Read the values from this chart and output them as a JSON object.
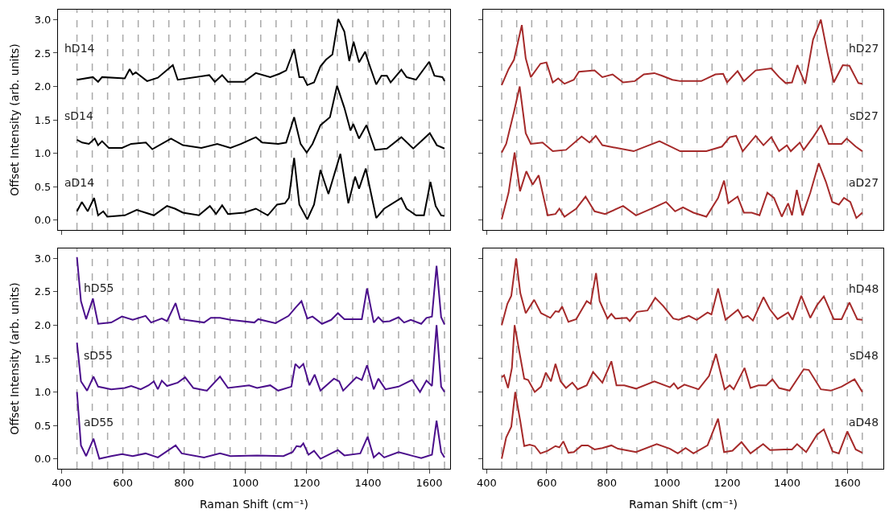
{
  "chart_data": [
    {
      "type": "line",
      "ylabel": "Offset Intensity (arb. units)",
      "xlim": [
        388,
        1668
      ],
      "ylim": [
        -0.15,
        3.15
      ],
      "xticks": [
        {
          "value": 400,
          "label": null
        },
        {
          "value": 600,
          "label": null
        },
        {
          "value": 800,
          "label": null
        },
        {
          "value": 1000,
          "label": null
        },
        {
          "value": 1200,
          "label": null
        },
        {
          "value": 1400,
          "label": null
        },
        {
          "value": 1600,
          "label": null
        }
      ],
      "yticks": [
        {
          "value": 0,
          "label": "0.0"
        },
        {
          "value": 0.5,
          "label": "0.5"
        },
        {
          "value": 1,
          "label": "1.0"
        },
        {
          "value": 1.5,
          "label": "1.5"
        },
        {
          "value": 2,
          "label": "2.0"
        },
        {
          "value": 2.5,
          "label": "2.5"
        },
        {
          "value": 3,
          "label": "3.0"
        }
      ],
      "tick_labels": "y",
      "line_style": "solid",
      "series": [
        {
          "name": "hD14",
          "color": "#000000",
          "x": [
            450,
            502,
            519,
            532,
            606,
            622,
            632,
            642,
            679,
            714,
            763,
            779,
            882,
            900,
            924,
            943,
            995,
            1034,
            1081,
            1111,
            1133,
            1159,
            1176,
            1189,
            1202,
            1224,
            1245,
            1263,
            1284,
            1303,
            1323,
            1339,
            1353,
            1371,
            1391,
            1405,
            1427,
            1444,
            1462,
            1474,
            1509,
            1526,
            1557,
            1600,
            1617,
            1643,
            1650
          ],
          "values": [
            2.1,
            2.14,
            2.07,
            2.14,
            2.12,
            2.26,
            2.18,
            2.21,
            2.08,
            2.13,
            2.32,
            2.1,
            2.17,
            2.07,
            2.17,
            2.07,
            2.07,
            2.2,
            2.14,
            2.19,
            2.24,
            2.56,
            2.14,
            2.14,
            2.02,
            2.06,
            2.3,
            2.4,
            2.48,
            3.01,
            2.82,
            2.38,
            2.67,
            2.36,
            2.52,
            2.32,
            2.03,
            2.16,
            2.16,
            2.06,
            2.25,
            2.14,
            2.1,
            2.37,
            2.16,
            2.14,
            2.08
          ]
        },
        {
          "name": "sD14",
          "color": "#000000",
          "x": [
            450,
            467,
            489,
            508,
            519,
            532,
            554,
            597,
            627,
            675,
            696,
            757,
            796,
            856,
            908,
            951,
            986,
            1034,
            1055,
            1107,
            1133,
            1159,
            1180,
            1200,
            1219,
            1245,
            1276,
            1299,
            1323,
            1343,
            1352,
            1371,
            1395,
            1423,
            1462,
            1509,
            1548,
            1602,
            1625,
            1650
          ],
          "values": [
            1.2,
            1.16,
            1.14,
            1.22,
            1.12,
            1.18,
            1.08,
            1.08,
            1.14,
            1.16,
            1.06,
            1.22,
            1.12,
            1.08,
            1.14,
            1.08,
            1.14,
            1.24,
            1.16,
            1.14,
            1.16,
            1.54,
            1.14,
            1.01,
            1.14,
            1.42,
            1.54,
            2.01,
            1.68,
            1.34,
            1.44,
            1.22,
            1.42,
            1.05,
            1.07,
            1.24,
            1.07,
            1.3,
            1.12,
            1.07
          ]
        },
        {
          "name": "aD14",
          "color": "#000000",
          "x": [
            450,
            466,
            485,
            506,
            519,
            536,
            549,
            606,
            645,
            701,
            744,
            770,
            796,
            848,
            884,
            904,
            924,
            943,
            995,
            1034,
            1073,
            1103,
            1129,
            1142,
            1159,
            1176,
            1202,
            1224,
            1245,
            1271,
            1310,
            1336,
            1358,
            1371,
            1393,
            1427,
            1453,
            1509,
            1526,
            1557,
            1583,
            1604,
            1621,
            1639,
            1650
          ],
          "values": [
            0.13,
            0.27,
            0.13,
            0.33,
            0.07,
            0.13,
            0.05,
            0.07,
            0.15,
            0.07,
            0.21,
            0.17,
            0.11,
            0.07,
            0.21,
            0.09,
            0.22,
            0.09,
            0.11,
            0.17,
            0.07,
            0.23,
            0.25,
            0.33,
            0.93,
            0.23,
            0.01,
            0.23,
            0.75,
            0.39,
            0.99,
            0.25,
            0.65,
            0.47,
            0.77,
            0.03,
            0.17,
            0.33,
            0.17,
            0.07,
            0.07,
            0.57,
            0.21,
            0.07,
            0.06
          ]
        }
      ],
      "ref_lines": [
        {
          "axis": "x",
          "value": 450,
          "color": "#a9a9a9",
          "line_style": "dashed"
        },
        {
          "axis": "x",
          "value": 500,
          "color": "#a9a9a9",
          "line_style": "dashed"
        },
        {
          "axis": "x",
          "value": 550,
          "color": "#a9a9a9",
          "line_style": "dashed"
        },
        {
          "axis": "x",
          "value": 600,
          "color": "#a9a9a9",
          "line_style": "dashed"
        },
        {
          "axis": "x",
          "value": 650,
          "color": "#a9a9a9",
          "line_style": "dashed"
        },
        {
          "axis": "x",
          "value": 700,
          "color": "#a9a9a9",
          "line_style": "dashed"
        },
        {
          "axis": "x",
          "value": 750,
          "color": "#a9a9a9",
          "line_style": "dashed"
        },
        {
          "axis": "x",
          "value": 800,
          "color": "#a9a9a9",
          "line_style": "dashed"
        },
        {
          "axis": "x",
          "value": 850,
          "color": "#a9a9a9",
          "line_style": "dashed"
        },
        {
          "axis": "x",
          "value": 900,
          "color": "#a9a9a9",
          "line_style": "dashed"
        },
        {
          "axis": "x",
          "value": 950,
          "color": "#a9a9a9",
          "line_style": "dashed"
        },
        {
          "axis": "x",
          "value": 1000,
          "color": "#a9a9a9",
          "line_style": "dashed"
        },
        {
          "axis": "x",
          "value": 1050,
          "color": "#a9a9a9",
          "line_style": "dashed"
        },
        {
          "axis": "x",
          "value": 1100,
          "color": "#a9a9a9",
          "line_style": "dashed"
        },
        {
          "axis": "x",
          "value": 1150,
          "color": "#a9a9a9",
          "line_style": "dashed"
        },
        {
          "axis": "x",
          "value": 1200,
          "color": "#a9a9a9",
          "line_style": "dashed"
        },
        {
          "axis": "x",
          "value": 1250,
          "color": "#a9a9a9",
          "line_style": "dashed"
        },
        {
          "axis": "x",
          "value": 1300,
          "color": "#a9a9a9",
          "line_style": "dashed"
        },
        {
          "axis": "x",
          "value": 1350,
          "color": "#a9a9a9",
          "line_style": "dashed"
        },
        {
          "axis": "x",
          "value": 1400,
          "color": "#a9a9a9",
          "line_style": "dashed"
        },
        {
          "axis": "x",
          "value": 1450,
          "color": "#a9a9a9",
          "line_style": "dashed"
        },
        {
          "axis": "x",
          "value": 1500,
          "color": "#a9a9a9",
          "line_style": "dashed"
        },
        {
          "axis": "x",
          "value": 1550,
          "color": "#a9a9a9",
          "line_style": "dashed"
        },
        {
          "axis": "x",
          "value": 1600,
          "color": "#a9a9a9",
          "line_style": "dashed"
        },
        {
          "axis": "x",
          "value": 1650,
          "color": "#a9a9a9",
          "line_style": "dashed"
        }
      ]
    },
    {
      "type": "line",
      "xlim": [
        388,
        1720
      ],
      "ylim": [
        -0.15,
        3.15
      ],
      "xticks": [
        {
          "value": 400,
          "label": null
        },
        {
          "value": 600,
          "label": null
        },
        {
          "value": 800,
          "label": null
        },
        {
          "value": 1000,
          "label": null
        },
        {
          "value": 1200,
          "label": null
        },
        {
          "value": 1400,
          "label": null
        },
        {
          "value": 1600,
          "label": null
        }
      ],
      "yticks": [
        {
          "value": 0,
          "label": null
        },
        {
          "value": 0.5,
          "label": null
        },
        {
          "value": 1,
          "label": null
        },
        {
          "value": 1.5,
          "label": null
        },
        {
          "value": 2,
          "label": null
        },
        {
          "value": 2.5,
          "label": null
        },
        {
          "value": 3,
          "label": null
        }
      ],
      "tick_labels": false,
      "line_style": "solid",
      "series": [
        {
          "name": "hD27",
          "color": "#a52a2a",
          "x": [
            450,
            473,
            491,
            517,
            530,
            547,
            579,
            599,
            620,
            638,
            659,
            690,
            707,
            759,
            785,
            819,
            854,
            893,
            923,
            958,
            984,
            1018,
            1044,
            1114,
            1161,
            1187,
            1200,
            1235,
            1256,
            1295,
            1347,
            1373,
            1395,
            1416,
            1434,
            1460,
            1486,
            1512,
            1533,
            1555,
            1585,
            1607,
            1637,
            1650
          ],
          "values": [
            2.02,
            2.26,
            2.4,
            2.92,
            2.42,
            2.14,
            2.34,
            2.36,
            2.06,
            2.12,
            2.04,
            2.1,
            2.22,
            2.24,
            2.14,
            2.18,
            2.06,
            2.08,
            2.18,
            2.2,
            2.16,
            2.1,
            2.08,
            2.08,
            2.18,
            2.19,
            2.06,
            2.23,
            2.08,
            2.24,
            2.27,
            2.14,
            2.05,
            2.06,
            2.32,
            2.04,
            2.7,
            3.0,
            2.52,
            2.06,
            2.32,
            2.31,
            2.05,
            2.04
          ]
        },
        {
          "name": "sD27",
          "color": "#a52a2a",
          "x": [
            450,
            465,
            491,
            510,
            530,
            547,
            586,
            620,
            664,
            716,
            742,
            763,
            785,
            889,
            975,
            1044,
            1131,
            1183,
            1209,
            1230,
            1252,
            1295,
            1321,
            1347,
            1373,
            1399,
            1412,
            1442,
            1455,
            1486,
            1512,
            1538,
            1581,
            1598,
            1628,
            1650
          ],
          "values": [
            1.01,
            1.14,
            1.62,
            2.0,
            1.3,
            1.14,
            1.16,
            1.03,
            1.05,
            1.25,
            1.16,
            1.26,
            1.12,
            1.03,
            1.18,
            1.03,
            1.03,
            1.1,
            1.24,
            1.26,
            1.03,
            1.26,
            1.12,
            1.24,
            1.03,
            1.12,
            1.03,
            1.16,
            1.05,
            1.24,
            1.42,
            1.14,
            1.14,
            1.22,
            1.1,
            1.03
          ]
        },
        {
          "name": "aD27",
          "color": "#a52a2a",
          "x": [
            450,
            473,
            493,
            511,
            532,
            553,
            573,
            603,
            629,
            642,
            659,
            698,
            729,
            759,
            794,
            854,
            897,
            958,
            997,
            1027,
            1053,
            1088,
            1131,
            1170,
            1190,
            1204,
            1235,
            1256,
            1282,
            1308,
            1334,
            1356,
            1382,
            1403,
            1416,
            1432,
            1451,
            1477,
            1505,
            1529,
            1550,
            1572,
            1589,
            1610,
            1630,
            1650
          ],
          "values": [
            0.01,
            0.41,
            1.01,
            0.43,
            0.73,
            0.53,
            0.67,
            0.07,
            0.09,
            0.17,
            0.05,
            0.17,
            0.35,
            0.13,
            0.09,
            0.21,
            0.07,
            0.19,
            0.27,
            0.13,
            0.19,
            0.11,
            0.05,
            0.33,
            0.59,
            0.25,
            0.35,
            0.11,
            0.11,
            0.07,
            0.41,
            0.33,
            0.05,
            0.25,
            0.07,
            0.45,
            0.07,
            0.41,
            0.85,
            0.57,
            0.27,
            0.23,
            0.33,
            0.27,
            0.03,
            0.11
          ]
        }
      ],
      "ref_lines": [
        {
          "axis": "x",
          "value": 450,
          "color": "#a9a9a9",
          "line_style": "dashed"
        },
        {
          "axis": "x",
          "value": 500,
          "color": "#a9a9a9",
          "line_style": "dashed"
        },
        {
          "axis": "x",
          "value": 550,
          "color": "#a9a9a9",
          "line_style": "dashed"
        },
        {
          "axis": "x",
          "value": 600,
          "color": "#a9a9a9",
          "line_style": "dashed"
        },
        {
          "axis": "x",
          "value": 650,
          "color": "#a9a9a9",
          "line_style": "dashed"
        },
        {
          "axis": "x",
          "value": 700,
          "color": "#a9a9a9",
          "line_style": "dashed"
        },
        {
          "axis": "x",
          "value": 750,
          "color": "#a9a9a9",
          "line_style": "dashed"
        },
        {
          "axis": "x",
          "value": 800,
          "color": "#a9a9a9",
          "line_style": "dashed"
        },
        {
          "axis": "x",
          "value": 850,
          "color": "#a9a9a9",
          "line_style": "dashed"
        },
        {
          "axis": "x",
          "value": 900,
          "color": "#a9a9a9",
          "line_style": "dashed"
        },
        {
          "axis": "x",
          "value": 950,
          "color": "#a9a9a9",
          "line_style": "dashed"
        },
        {
          "axis": "x",
          "value": 1000,
          "color": "#a9a9a9",
          "line_style": "dashed"
        },
        {
          "axis": "x",
          "value": 1050,
          "color": "#a9a9a9",
          "line_style": "dashed"
        },
        {
          "axis": "x",
          "value": 1100,
          "color": "#a9a9a9",
          "line_style": "dashed"
        },
        {
          "axis": "x",
          "value": 1150,
          "color": "#a9a9a9",
          "line_style": "dashed"
        },
        {
          "axis": "x",
          "value": 1200,
          "color": "#a9a9a9",
          "line_style": "dashed"
        },
        {
          "axis": "x",
          "value": 1250,
          "color": "#a9a9a9",
          "line_style": "dashed"
        },
        {
          "axis": "x",
          "value": 1300,
          "color": "#a9a9a9",
          "line_style": "dashed"
        },
        {
          "axis": "x",
          "value": 1350,
          "color": "#a9a9a9",
          "line_style": "dashed"
        },
        {
          "axis": "x",
          "value": 1400,
          "color": "#a9a9a9",
          "line_style": "dashed"
        },
        {
          "axis": "x",
          "value": 1450,
          "color": "#a9a9a9",
          "line_style": "dashed"
        },
        {
          "axis": "x",
          "value": 1500,
          "color": "#a9a9a9",
          "line_style": "dashed"
        },
        {
          "axis": "x",
          "value": 1550,
          "color": "#a9a9a9",
          "line_style": "dashed"
        },
        {
          "axis": "x",
          "value": 1600,
          "color": "#a9a9a9",
          "line_style": "dashed"
        },
        {
          "axis": "x",
          "value": 1650,
          "color": "#a9a9a9",
          "line_style": "dashed"
        }
      ]
    },
    {
      "type": "line",
      "xlabel": "Raman Shift (cm⁻¹)",
      "ylabel": "Offset Intensity (arb. units)",
      "xlim": [
        388,
        1668
      ],
      "ylim": [
        -0.15,
        3.15
      ],
      "xticks": [
        400,
        600,
        800,
        1000,
        1200,
        1400,
        1600
      ],
      "yticks": [
        {
          "value": 0,
          "label": "0.0"
        },
        {
          "value": 0.5,
          "label": "0.5"
        },
        {
          "value": 1,
          "label": "1.0"
        },
        {
          "value": 1.5,
          "label": "1.5"
        },
        {
          "value": 2,
          "label": "2.0"
        },
        {
          "value": 2.5,
          "label": "2.5"
        },
        {
          "value": 3,
          "label": "3.0"
        }
      ],
      "line_style": "solid",
      "series": [
        {
          "name": "hD55",
          "color": "#4b0f8c",
          "x": [
            450,
            463,
            480,
            502,
            519,
            562,
            597,
            632,
            674,
            692,
            727,
            744,
            772,
            787,
            865,
            887,
            917,
            951,
            1029,
            1042,
            1098,
            1141,
            1163,
            1183,
            1202,
            1219,
            1250,
            1280,
            1302,
            1323,
            1380,
            1397,
            1419,
            1434,
            1449,
            1471,
            1500,
            1518,
            1540,
            1574,
            1591,
            1609,
            1624,
            1639,
            1650
          ],
          "values": [
            3.02,
            2.36,
            2.09,
            2.4,
            2.02,
            2.04,
            2.13,
            2.08,
            2.14,
            2.04,
            2.1,
            2.06,
            2.33,
            2.09,
            2.04,
            2.11,
            2.11,
            2.08,
            2.04,
            2.09,
            2.03,
            2.14,
            2.26,
            2.36,
            2.1,
            2.13,
            2.02,
            2.08,
            2.18,
            2.09,
            2.09,
            2.55,
            2.04,
            2.12,
            2.05,
            2.06,
            2.12,
            2.04,
            2.08,
            2.02,
            2.11,
            2.13,
            2.89,
            2.12,
            2.01
          ]
        },
        {
          "name": "sD55",
          "color": "#4b0f8c",
          "x": [
            450,
            463,
            483,
            504,
            519,
            562,
            606,
            627,
            658,
            684,
            701,
            714,
            727,
            744,
            779,
            803,
            830,
            874,
            917,
            943,
            1012,
            1038,
            1081,
            1107,
            1150,
            1163,
            1176,
            1189,
            1209,
            1226,
            1245,
            1289,
            1306,
            1319,
            1362,
            1380,
            1397,
            1419,
            1434,
            1457,
            1500,
            1544,
            1570,
            1591,
            1609,
            1624,
            1639,
            1650
          ],
          "values": [
            1.74,
            1.16,
            1.02,
            1.23,
            1.08,
            1.04,
            1.06,
            1.09,
            1.04,
            1.1,
            1.16,
            1.04,
            1.17,
            1.09,
            1.14,
            1.22,
            1.06,
            1.02,
            1.23,
            1.06,
            1.1,
            1.06,
            1.1,
            1.02,
            1.08,
            1.42,
            1.36,
            1.42,
            1.1,
            1.26,
            1.02,
            1.2,
            1.16,
            1.02,
            1.22,
            1.18,
            1.4,
            1.04,
            1.2,
            1.04,
            1.08,
            1.18,
            1.0,
            1.17,
            1.09,
            2.0,
            1.08,
            1.0
          ]
        },
        {
          "name": "aD55",
          "color": "#4b0f8c",
          "x": [
            450,
            463,
            480,
            504,
            523,
            562,
            597,
            632,
            674,
            714,
            772,
            792,
            865,
            917,
            951,
            1038,
            1124,
            1154,
            1167,
            1180,
            1189,
            1206,
            1224,
            1245,
            1280,
            1302,
            1323,
            1375,
            1399,
            1419,
            1436,
            1453,
            1500,
            1540,
            1574,
            1609,
            1624,
            1639,
            1650
          ],
          "values": [
            1.0,
            0.2,
            0.04,
            0.3,
            0.0,
            0.04,
            0.07,
            0.04,
            0.08,
            0.02,
            0.2,
            0.08,
            0.02,
            0.08,
            0.04,
            0.05,
            0.04,
            0.1,
            0.19,
            0.18,
            0.23,
            0.06,
            0.12,
            0.0,
            0.08,
            0.13,
            0.05,
            0.08,
            0.33,
            0.02,
            0.09,
            0.02,
            0.1,
            0.05,
            0.01,
            0.06,
            0.57,
            0.1,
            0.02
          ]
        }
      ],
      "ref_lines": [
        {
          "axis": "x",
          "value": 450,
          "color": "#a9a9a9",
          "line_style": "dashed"
        },
        {
          "axis": "x",
          "value": 500,
          "color": "#a9a9a9",
          "line_style": "dashed"
        },
        {
          "axis": "x",
          "value": 550,
          "color": "#a9a9a9",
          "line_style": "dashed"
        },
        {
          "axis": "x",
          "value": 600,
          "color": "#a9a9a9",
          "line_style": "dashed"
        },
        {
          "axis": "x",
          "value": 650,
          "color": "#a9a9a9",
          "line_style": "dashed"
        },
        {
          "axis": "x",
          "value": 700,
          "color": "#a9a9a9",
          "line_style": "dashed"
        },
        {
          "axis": "x",
          "value": 750,
          "color": "#a9a9a9",
          "line_style": "dashed"
        },
        {
          "axis": "x",
          "value": 800,
          "color": "#a9a9a9",
          "line_style": "dashed"
        },
        {
          "axis": "x",
          "value": 850,
          "color": "#a9a9a9",
          "line_style": "dashed"
        },
        {
          "axis": "x",
          "value": 900,
          "color": "#a9a9a9",
          "line_style": "dashed"
        },
        {
          "axis": "x",
          "value": 950,
          "color": "#a9a9a9",
          "line_style": "dashed"
        },
        {
          "axis": "x",
          "value": 1000,
          "color": "#a9a9a9",
          "line_style": "dashed"
        },
        {
          "axis": "x",
          "value": 1050,
          "color": "#a9a9a9",
          "line_style": "dashed"
        },
        {
          "axis": "x",
          "value": 1100,
          "color": "#a9a9a9",
          "line_style": "dashed"
        },
        {
          "axis": "x",
          "value": 1150,
          "color": "#a9a9a9",
          "line_style": "dashed"
        },
        {
          "axis": "x",
          "value": 1200,
          "color": "#a9a9a9",
          "line_style": "dashed"
        },
        {
          "axis": "x",
          "value": 1250,
          "color": "#a9a9a9",
          "line_style": "dashed"
        },
        {
          "axis": "x",
          "value": 1300,
          "color": "#a9a9a9",
          "line_style": "dashed"
        },
        {
          "axis": "x",
          "value": 1350,
          "color": "#a9a9a9",
          "line_style": "dashed"
        },
        {
          "axis": "x",
          "value": 1400,
          "color": "#a9a9a9",
          "line_style": "dashed"
        },
        {
          "axis": "x",
          "value": 1450,
          "color": "#a9a9a9",
          "line_style": "dashed"
        },
        {
          "axis": "x",
          "value": 1500,
          "color": "#a9a9a9",
          "line_style": "dashed"
        },
        {
          "axis": "x",
          "value": 1550,
          "color": "#a9a9a9",
          "line_style": "dashed"
        },
        {
          "axis": "x",
          "value": 1600,
          "color": "#a9a9a9",
          "line_style": "dashed"
        },
        {
          "axis": "x",
          "value": 1650,
          "color": "#a9a9a9",
          "line_style": "dashed"
        }
      ]
    },
    {
      "type": "line",
      "xlabel": "Raman Shift (cm⁻¹)",
      "xlim": [
        388,
        1720
      ],
      "ylim": [
        -0.15,
        3.15
      ],
      "xticks": [
        400,
        600,
        800,
        1000,
        1200,
        1400,
        1600
      ],
      "yticks": [
        {
          "value": 0,
          "label": null
        },
        {
          "value": 0.5,
          "label": null
        },
        {
          "value": 1,
          "label": null
        },
        {
          "value": 1.5,
          "label": null
        },
        {
          "value": 2,
          "label": null
        },
        {
          "value": 2.5,
          "label": null
        },
        {
          "value": 3,
          "label": null
        }
      ],
      "tick_labels": "x",
      "line_style": "solid",
      "series": [
        {
          "name": "hD48",
          "color": "#a52a2a",
          "x": [
            450,
            469,
            482,
            498,
            512,
            530,
            558,
            581,
            612,
            629,
            640,
            651,
            672,
            698,
            733,
            746,
            764,
            776,
            802,
            815,
            828,
            866,
            876,
            900,
            935,
            961,
            987,
            1021,
            1039,
            1073,
            1099,
            1135,
            1148,
            1170,
            1195,
            1236,
            1252,
            1269,
            1286,
            1321,
            1342,
            1368,
            1403,
            1418,
            1447,
            1477,
            1499,
            1522,
            1555,
            1581,
            1607,
            1633,
            1650
          ],
          "values": [
            2.0,
            2.32,
            2.44,
            3.0,
            2.48,
            2.18,
            2.38,
            2.18,
            2.11,
            2.21,
            2.2,
            2.28,
            2.05,
            2.09,
            2.36,
            2.32,
            2.78,
            2.36,
            2.1,
            2.17,
            2.1,
            2.11,
            2.06,
            2.2,
            2.22,
            2.41,
            2.29,
            2.1,
            2.08,
            2.14,
            2.08,
            2.19,
            2.16,
            2.55,
            2.08,
            2.23,
            2.11,
            2.14,
            2.07,
            2.42,
            2.24,
            2.09,
            2.19,
            2.08,
            2.44,
            2.11,
            2.3,
            2.43,
            2.09,
            2.09,
            2.34,
            2.09,
            2.08
          ]
        },
        {
          "name": "sD48",
          "color": "#a52a2a",
          "x": [
            450,
            458,
            471,
            484,
            493,
            512,
            525,
            538,
            560,
            581,
            597,
            614,
            629,
            646,
            664,
            685,
            703,
            733,
            754,
            785,
            815,
            832,
            858,
            897,
            958,
            1010,
            1023,
            1036,
            1058,
            1105,
            1140,
            1163,
            1192,
            1209,
            1222,
            1258,
            1278,
            1304,
            1330,
            1351,
            1373,
            1408,
            1455,
            1472,
            1512,
            1545,
            1581,
            1624,
            1650
          ],
          "values": [
            1.22,
            1.25,
            1.06,
            1.36,
            2.0,
            1.52,
            1.2,
            1.18,
            1.0,
            1.08,
            1.29,
            1.16,
            1.42,
            1.16,
            1.06,
            1.14,
            1.04,
            1.1,
            1.3,
            1.14,
            1.46,
            1.1,
            1.1,
            1.05,
            1.16,
            1.07,
            1.13,
            1.05,
            1.11,
            1.04,
            1.24,
            1.57,
            1.04,
            1.1,
            1.04,
            1.36,
            1.06,
            1.1,
            1.1,
            1.19,
            1.06,
            1.02,
            1.34,
            1.33,
            1.04,
            1.02,
            1.08,
            1.19,
            1.0
          ]
        },
        {
          "name": "aD48",
          "color": "#a52a2a",
          "x": [
            450,
            465,
            482,
            495,
            512,
            525,
            543,
            560,
            579,
            603,
            629,
            642,
            655,
            672,
            690,
            716,
            737,
            759,
            785,
            815,
            837,
            897,
            966,
            1010,
            1036,
            1062,
            1088,
            1135,
            1170,
            1190,
            1218,
            1248,
            1278,
            1320,
            1343,
            1390,
            1416,
            1433,
            1463,
            1499,
            1522,
            1551,
            1572,
            1600,
            1628,
            1650
          ],
          "values": [
            0.0,
            0.32,
            0.48,
            1.0,
            0.56,
            0.19,
            0.21,
            0.19,
            0.08,
            0.12,
            0.19,
            0.17,
            0.26,
            0.09,
            0.1,
            0.2,
            0.2,
            0.14,
            0.16,
            0.2,
            0.15,
            0.1,
            0.22,
            0.15,
            0.08,
            0.16,
            0.08,
            0.2,
            0.6,
            0.1,
            0.12,
            0.25,
            0.08,
            0.22,
            0.13,
            0.14,
            0.14,
            0.22,
            0.1,
            0.36,
            0.44,
            0.11,
            0.08,
            0.41,
            0.14,
            0.09
          ]
        }
      ],
      "ref_lines": [
        {
          "axis": "x",
          "value": 450,
          "color": "#a9a9a9",
          "line_style": "dashed"
        },
        {
          "axis": "x",
          "value": 500,
          "color": "#a9a9a9",
          "line_style": "dashed"
        },
        {
          "axis": "x",
          "value": 550,
          "color": "#a9a9a9",
          "line_style": "dashed"
        },
        {
          "axis": "x",
          "value": 600,
          "color": "#a9a9a9",
          "line_style": "dashed"
        },
        {
          "axis": "x",
          "value": 650,
          "color": "#a9a9a9",
          "line_style": "dashed"
        },
        {
          "axis": "x",
          "value": 700,
          "color": "#a9a9a9",
          "line_style": "dashed"
        },
        {
          "axis": "x",
          "value": 750,
          "color": "#a9a9a9",
          "line_style": "dashed"
        },
        {
          "axis": "x",
          "value": 800,
          "color": "#a9a9a9",
          "line_style": "dashed"
        },
        {
          "axis": "x",
          "value": 850,
          "color": "#a9a9a9",
          "line_style": "dashed"
        },
        {
          "axis": "x",
          "value": 900,
          "color": "#a9a9a9",
          "line_style": "dashed"
        },
        {
          "axis": "x",
          "value": 950,
          "color": "#a9a9a9",
          "line_style": "dashed"
        },
        {
          "axis": "x",
          "value": 1000,
          "color": "#a9a9a9",
          "line_style": "dashed"
        },
        {
          "axis": "x",
          "value": 1050,
          "color": "#a9a9a9",
          "line_style": "dashed"
        },
        {
          "axis": "x",
          "value": 1100,
          "color": "#a9a9a9",
          "line_style": "dashed"
        },
        {
          "axis": "x",
          "value": 1150,
          "color": "#a9a9a9",
          "line_style": "dashed"
        },
        {
          "axis": "x",
          "value": 1200,
          "color": "#a9a9a9",
          "line_style": "dashed"
        },
        {
          "axis": "x",
          "value": 1250,
          "color": "#a9a9a9",
          "line_style": "dashed"
        },
        {
          "axis": "x",
          "value": 1300,
          "color": "#a9a9a9",
          "line_style": "dashed"
        },
        {
          "axis": "x",
          "value": 1350,
          "color": "#a9a9a9",
          "line_style": "dashed"
        },
        {
          "axis": "x",
          "value": 1400,
          "color": "#a9a9a9",
          "line_style": "dashed"
        },
        {
          "axis": "x",
          "value": 1450,
          "color": "#a9a9a9",
          "line_style": "dashed"
        },
        {
          "axis": "x",
          "value": 1500,
          "color": "#a9a9a9",
          "line_style": "dashed"
        },
        {
          "axis": "x",
          "value": 1550,
          "color": "#a9a9a9",
          "line_style": "dashed"
        },
        {
          "axis": "x",
          "value": 1600,
          "color": "#a9a9a9",
          "line_style": "dashed"
        },
        {
          "axis": "x",
          "value": 1650,
          "color": "#a9a9a9",
          "line_style": "dashed"
        }
      ]
    }
  ]
}
